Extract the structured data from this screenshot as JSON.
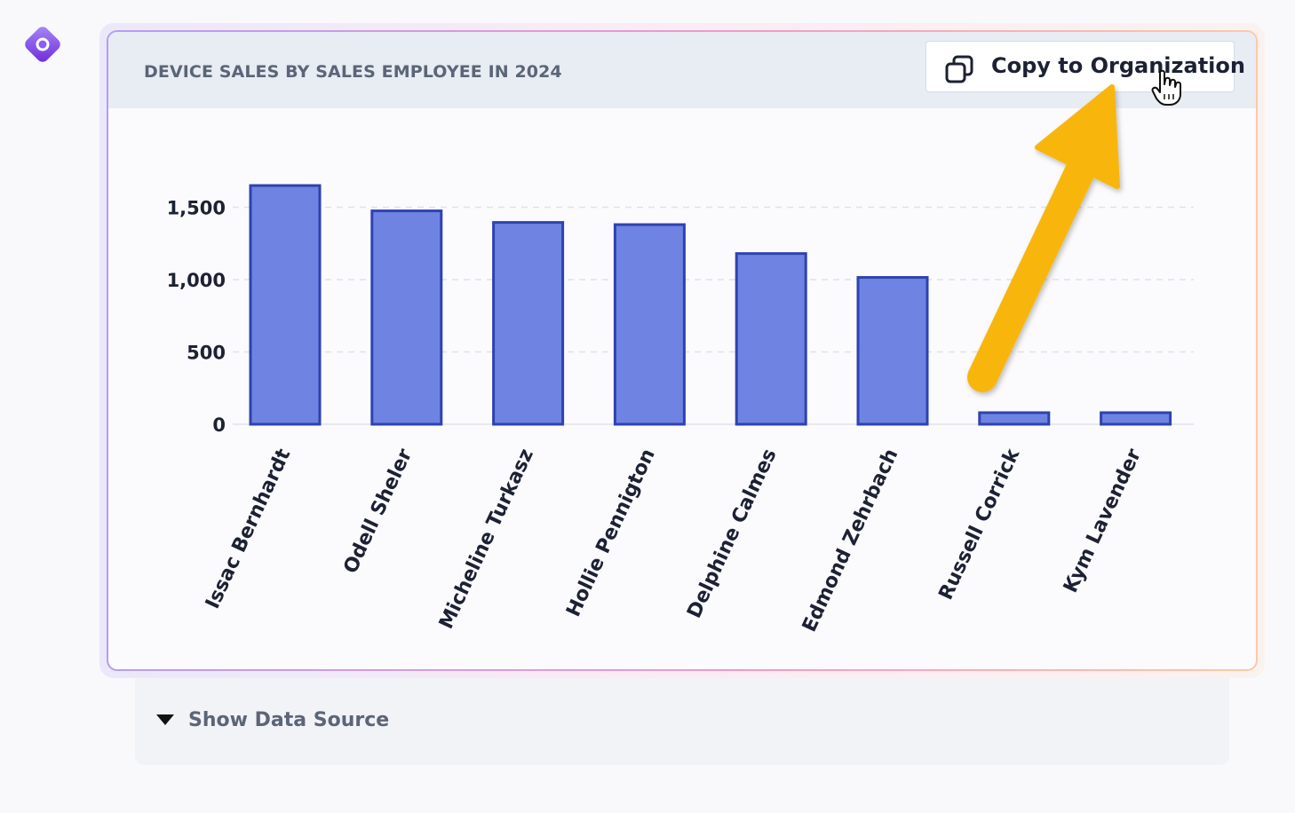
{
  "card": {
    "title": "DEVICE SALES BY SALES EMPLOYEE IN 2024",
    "copy_button_label": "Copy to Organization"
  },
  "data_source": {
    "toggle_label": "Show Data Source"
  },
  "colors": {
    "bar_fill": "#6f83e3",
    "bar_stroke": "#2f42b0",
    "arrow": "#f8b60a",
    "header_bg": "#e8ecf3"
  },
  "icons": {
    "app": "app-logo-icon",
    "copy": "copy-icon",
    "cursor": "hand-pointer-icon",
    "toggle": "triangle-down-icon"
  },
  "chart_data": {
    "type": "bar",
    "categories": [
      "Issac Bernhardt",
      "Odell Sheler",
      "Micheline Turkasz",
      "Hollie Pennigton",
      "Delphine Calmes",
      "Edmond Zehrbach",
      "Russell Corrick",
      "Kym Lavender"
    ],
    "values": [
      1650,
      1475,
      1395,
      1380,
      1180,
      1015,
      80,
      80
    ],
    "y_ticks": [
      0,
      500,
      1000,
      1500
    ],
    "y_tick_labels": [
      "0",
      "500",
      "1,000",
      "1,500"
    ],
    "ylim": [
      0,
      1750
    ],
    "grid": "horizontal dashed",
    "legend": "none",
    "xlabel": "",
    "ylabel": ""
  }
}
